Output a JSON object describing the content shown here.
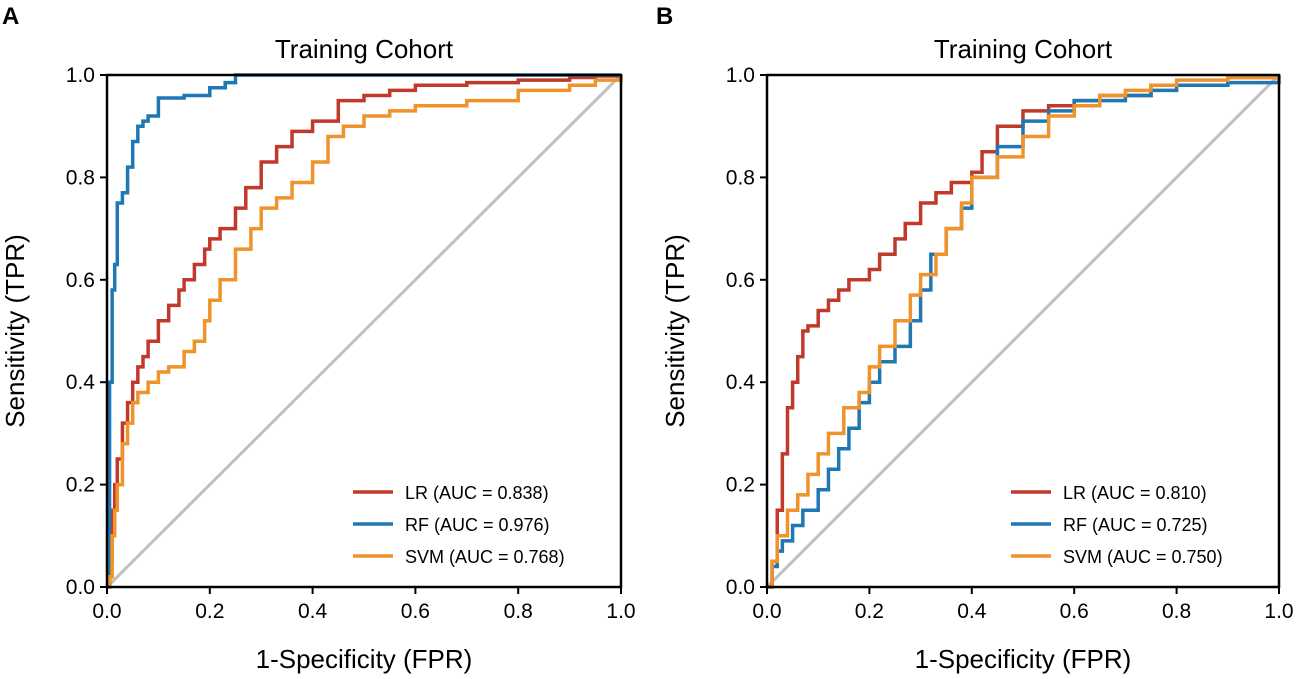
{
  "chart_data": [
    {
      "panel_label": "A",
      "type": "line",
      "title": "Training Cohort",
      "xlabel": "1-Specificity (FPR)",
      "ylabel": "Sensitivity (TPR)",
      "xlim": [
        0,
        1
      ],
      "ylim": [
        0,
        1
      ],
      "xticks": [
        "0.0",
        "0.2",
        "0.4",
        "0.6",
        "0.8",
        "1.0"
      ],
      "yticks": [
        "0.0",
        "0.2",
        "0.4",
        "0.6",
        "0.8",
        "1.0"
      ],
      "legend_position": "lower-right",
      "diagonal": {
        "color": "#c0c0c0",
        "x": [
          0,
          1
        ],
        "y": [
          0,
          1
        ]
      },
      "series": [
        {
          "name": "LR (AUC = 0.838)",
          "color": "#c0392b",
          "x": [
            0,
            0.005,
            0.01,
            0.015,
            0.02,
            0.03,
            0.04,
            0.05,
            0.06,
            0.07,
            0.08,
            0.1,
            0.12,
            0.14,
            0.15,
            0.17,
            0.19,
            0.2,
            0.22,
            0.25,
            0.27,
            0.3,
            0.33,
            0.36,
            0.4,
            0.45,
            0.5,
            0.55,
            0.6,
            0.7,
            0.8,
            0.9,
            0.95,
            1
          ],
          "y": [
            0,
            0.05,
            0.15,
            0.2,
            0.25,
            0.32,
            0.36,
            0.4,
            0.43,
            0.45,
            0.48,
            0.52,
            0.55,
            0.58,
            0.6,
            0.63,
            0.66,
            0.68,
            0.7,
            0.74,
            0.78,
            0.83,
            0.86,
            0.89,
            0.91,
            0.95,
            0.96,
            0.97,
            0.98,
            0.985,
            0.99,
            0.995,
            0.998,
            1
          ]
        },
        {
          "name": "RF (AUC = 0.976)",
          "color": "#1f77b4",
          "x": [
            0,
            0.005,
            0.01,
            0.015,
            0.02,
            0.03,
            0.04,
            0.05,
            0.06,
            0.07,
            0.08,
            0.1,
            0.15,
            0.2,
            0.23,
            0.25,
            0.3,
            0.5,
            0.9,
            0.95,
            1
          ],
          "y": [
            0,
            0.4,
            0.58,
            0.63,
            0.75,
            0.77,
            0.82,
            0.87,
            0.9,
            0.91,
            0.92,
            0.955,
            0.96,
            0.975,
            0.985,
            1,
            1,
            1,
            1,
            1,
            1
          ]
        },
        {
          "name": "SVM (AUC = 0.768)",
          "color": "#f0932b",
          "x": [
            0,
            0.005,
            0.01,
            0.015,
            0.02,
            0.03,
            0.04,
            0.05,
            0.06,
            0.08,
            0.1,
            0.12,
            0.15,
            0.17,
            0.19,
            0.2,
            0.22,
            0.25,
            0.28,
            0.3,
            0.33,
            0.36,
            0.4,
            0.43,
            0.46,
            0.5,
            0.55,
            0.6,
            0.7,
            0.8,
            0.9,
            0.95,
            1
          ],
          "y": [
            0,
            0.02,
            0.1,
            0.15,
            0.2,
            0.28,
            0.32,
            0.36,
            0.38,
            0.4,
            0.42,
            0.43,
            0.46,
            0.48,
            0.52,
            0.56,
            0.6,
            0.66,
            0.7,
            0.74,
            0.76,
            0.79,
            0.83,
            0.88,
            0.9,
            0.92,
            0.93,
            0.94,
            0.95,
            0.97,
            0.98,
            0.99,
            1
          ]
        }
      ]
    },
    {
      "panel_label": "B",
      "type": "line",
      "title": "Training Cohort",
      "xlabel": "1-Specificity (FPR)",
      "ylabel": "Sensitivity (TPR)",
      "xlim": [
        0,
        1
      ],
      "ylim": [
        0,
        1
      ],
      "xticks": [
        "0.0",
        "0.2",
        "0.4",
        "0.6",
        "0.8",
        "1.0"
      ],
      "yticks": [
        "0.0",
        "0.2",
        "0.4",
        "0.6",
        "0.8",
        "1.0"
      ],
      "legend_position": "lower-right",
      "diagonal": {
        "color": "#c0c0c0",
        "x": [
          0,
          1
        ],
        "y": [
          0,
          1
        ]
      },
      "series": [
        {
          "name": "LR (AUC = 0.810)",
          "color": "#c0392b",
          "x": [
            0,
            0.01,
            0.02,
            0.03,
            0.04,
            0.05,
            0.06,
            0.07,
            0.08,
            0.1,
            0.12,
            0.14,
            0.16,
            0.2,
            0.22,
            0.25,
            0.27,
            0.3,
            0.33,
            0.36,
            0.4,
            0.42,
            0.45,
            0.5,
            0.55,
            0.6,
            0.65,
            0.75,
            0.9,
            1
          ],
          "y": [
            0,
            0.05,
            0.15,
            0.26,
            0.35,
            0.4,
            0.45,
            0.5,
            0.51,
            0.54,
            0.56,
            0.58,
            0.6,
            0.62,
            0.65,
            0.68,
            0.71,
            0.75,
            0.77,
            0.79,
            0.81,
            0.85,
            0.9,
            0.93,
            0.94,
            0.95,
            0.96,
            0.98,
            0.995,
            1
          ]
        },
        {
          "name": "RF (AUC = 0.725)",
          "color": "#1f77b4",
          "x": [
            0,
            0.01,
            0.02,
            0.03,
            0.05,
            0.07,
            0.1,
            0.12,
            0.14,
            0.16,
            0.18,
            0.2,
            0.22,
            0.25,
            0.28,
            0.3,
            0.32,
            0.35,
            0.38,
            0.4,
            0.45,
            0.5,
            0.55,
            0.6,
            0.7,
            0.75,
            0.8,
            0.9,
            1
          ],
          "y": [
            0,
            0.04,
            0.07,
            0.09,
            0.12,
            0.15,
            0.19,
            0.23,
            0.27,
            0.31,
            0.36,
            0.4,
            0.44,
            0.47,
            0.52,
            0.58,
            0.65,
            0.7,
            0.74,
            0.8,
            0.86,
            0.91,
            0.93,
            0.95,
            0.96,
            0.97,
            0.98,
            0.985,
            1
          ]
        },
        {
          "name": "SVM (AUC = 0.750)",
          "color": "#f0932b",
          "x": [
            0,
            0.01,
            0.02,
            0.04,
            0.06,
            0.08,
            0.1,
            0.12,
            0.15,
            0.18,
            0.2,
            0.22,
            0.25,
            0.28,
            0.3,
            0.33,
            0.35,
            0.38,
            0.4,
            0.45,
            0.5,
            0.55,
            0.6,
            0.65,
            0.7,
            0.75,
            0.8,
            0.9,
            1
          ],
          "y": [
            0,
            0.05,
            0.1,
            0.15,
            0.18,
            0.22,
            0.26,
            0.3,
            0.35,
            0.38,
            0.43,
            0.47,
            0.52,
            0.57,
            0.61,
            0.65,
            0.7,
            0.75,
            0.8,
            0.84,
            0.88,
            0.92,
            0.94,
            0.96,
            0.97,
            0.98,
            0.99,
            0.995,
            1
          ]
        }
      ]
    }
  ]
}
